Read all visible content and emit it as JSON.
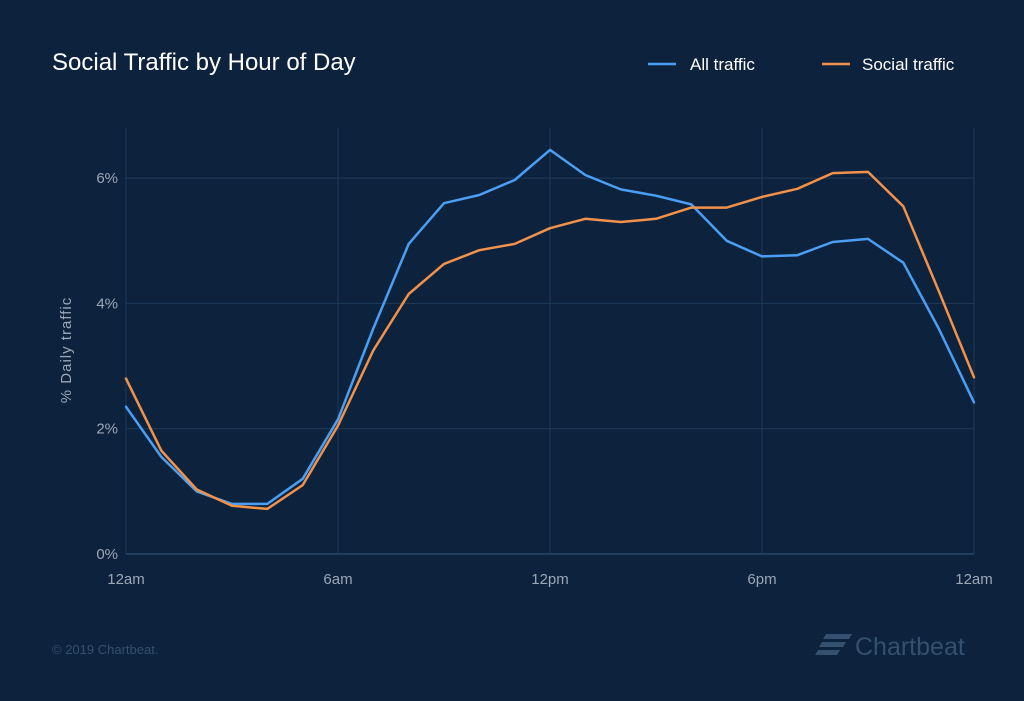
{
  "chart_data": {
    "type": "line",
    "title": "Social Traffic by Hour of Day",
    "xlabel": "",
    "ylabel": "% Daily traffic",
    "x_tick_labels": [
      "12am",
      "6am",
      "12pm",
      "6pm",
      "12am"
    ],
    "y_tick_labels": [
      "0%",
      "2%",
      "4%",
      "6%"
    ],
    "x": [
      0,
      1,
      2,
      3,
      4,
      5,
      6,
      7,
      8,
      9,
      10,
      11,
      12,
      13,
      14,
      15,
      16,
      17,
      18,
      19,
      20,
      21,
      22,
      23,
      24
    ],
    "xlim": [
      0,
      24
    ],
    "ylim": [
      0,
      6.8
    ],
    "y_ticks": [
      0,
      2,
      4,
      6
    ],
    "grid": true,
    "legend_position": "top-right",
    "series": [
      {
        "name": "All traffic",
        "color": "#4a9ff5",
        "values": [
          2.35,
          1.55,
          1.0,
          0.8,
          0.8,
          1.2,
          2.15,
          3.6,
          4.95,
          5.6,
          5.73,
          5.97,
          6.45,
          6.05,
          5.82,
          5.72,
          5.58,
          5.0,
          4.75,
          4.77,
          4.98,
          5.03,
          4.65,
          3.6,
          2.42
        ]
      },
      {
        "name": "Social traffic",
        "color": "#f2914a",
        "values": [
          2.8,
          1.65,
          1.03,
          0.77,
          0.72,
          1.1,
          2.05,
          3.25,
          4.15,
          4.63,
          4.85,
          4.95,
          5.2,
          5.35,
          5.3,
          5.35,
          5.53,
          5.53,
          5.7,
          5.83,
          6.08,
          6.1,
          5.55,
          4.2,
          2.82
        ]
      }
    ]
  },
  "footer": {
    "copyright": "© 2019 Chartbeat.",
    "brand": "Chartbeat",
    "logo_icon": "chartbeat-logo-icon"
  }
}
